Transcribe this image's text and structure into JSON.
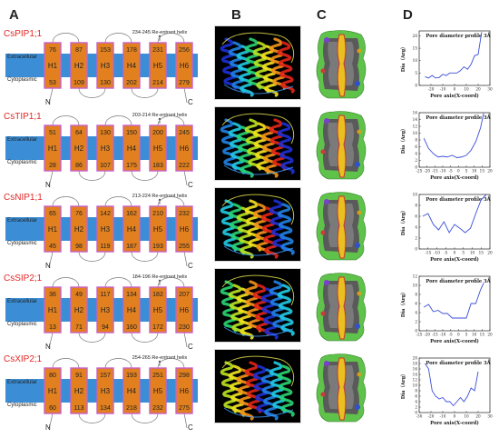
{
  "panel_labels": [
    "A",
    "B",
    "C",
    "D"
  ],
  "membrane": {
    "extracellular_label": "Extracellular",
    "cytoplasmic_label": "Cytoplasmic",
    "n_label": "N",
    "c_label": "C",
    "membrane_color": "#3b8ed6",
    "helix_color": "#e2801f",
    "helix_border": "#c960c9"
  },
  "proteins": [
    {
      "name": "CsPIP1;1",
      "reentrant": "234-245 Re-entrant helix",
      "helices": [
        "H1",
        "H2",
        "H3",
        "H4",
        "H5",
        "H6"
      ],
      "top": [
        "76",
        "87",
        "153",
        "178",
        "231",
        "256"
      ],
      "bottom": [
        "53",
        "109",
        "130",
        "202",
        "214",
        "279"
      ]
    },
    {
      "name": "CsTIP1;1",
      "reentrant": "203-214 Re-entrant helix",
      "helices": [
        "H1",
        "H2",
        "H3",
        "H4",
        "H5",
        "H6"
      ],
      "top": [
        "51",
        "64",
        "130",
        "150",
        "200",
        "245"
      ],
      "bottom": [
        "28",
        "86",
        "107",
        "175",
        "183",
        "222"
      ]
    },
    {
      "name": "CsNIP1;1",
      "reentrant": "213-224 Re-entrant helix",
      "helices": [
        "H1",
        "H2",
        "H3",
        "H4",
        "H5",
        "H6"
      ],
      "top": [
        "65",
        "76",
        "142",
        "162",
        "210",
        "232"
      ],
      "bottom": [
        "45",
        "98",
        "119",
        "187",
        "193",
        "255"
      ]
    },
    {
      "name": "CsSIP2;1",
      "reentrant": "184-196 Re-entrant helix",
      "helices": [
        "H1",
        "H2",
        "H3",
        "H4",
        "H5",
        "H6"
      ],
      "top": [
        "36",
        "49",
        "117",
        "134",
        "182",
        "207"
      ],
      "bottom": [
        "13",
        "71",
        "94",
        "160",
        "172",
        "230"
      ]
    },
    {
      "name": "CsXIP2;1",
      "reentrant": "254-265 Re-entrant helix",
      "helices": [
        "H1",
        "H2",
        "H3",
        "H4",
        "H5",
        "H6"
      ],
      "top": [
        "80",
        "91",
        "157",
        "193",
        "251",
        "298"
      ],
      "bottom": [
        "60",
        "113",
        "134",
        "218",
        "232",
        "275"
      ]
    }
  ],
  "chart_data": [
    {
      "type": "line",
      "title": "Pore diameter profile 3Å",
      "xlabel": "Pore axis(X-coord)",
      "ylabel": "Dia（Arg）",
      "xlim": [
        -30,
        30
      ],
      "ylim": [
        0,
        22
      ],
      "xticks": [
        "-20",
        "-10",
        "0",
        "10",
        "20",
        "30"
      ],
      "yticks": [
        "0",
        "5",
        "10",
        "15",
        "20"
      ],
      "series": [
        {
          "x": [
            -25,
            -22,
            -19,
            -16,
            -13,
            -10,
            -7,
            -4,
            -1,
            2,
            5,
            8,
            11,
            14,
            17,
            20,
            23
          ],
          "y": [
            3.5,
            3.0,
            4.0,
            3.0,
            3.2,
            4.5,
            4.0,
            5.0,
            5.0,
            5.0,
            6.0,
            7.5,
            6.5,
            8.5,
            12,
            12.5,
            21.5
          ]
        }
      ],
      "color": "#3b4fd8"
    },
    {
      "type": "line",
      "title": "Pore diameter profile 3Å",
      "xlabel": "Pore axis(X-coord)",
      "ylabel": "Dia（Arg）",
      "xlim": [
        -25,
        20
      ],
      "ylim": [
        0,
        16
      ],
      "xticks": [
        "-25",
        "-20",
        "-15",
        "-10",
        "-5",
        "0",
        "5",
        "10",
        "15",
        "20"
      ],
      "yticks": [
        "0",
        "2",
        "4",
        "6",
        "8",
        "10",
        "12",
        "14",
        "16"
      ],
      "series": [
        {
          "x": [
            -22,
            -19,
            -16,
            -13,
            -10,
            -7,
            -4,
            -1,
            2,
            5,
            8,
            11,
            14,
            16
          ],
          "y": [
            8.5,
            5.5,
            4.0,
            3.0,
            3.2,
            3.0,
            3.5,
            2.8,
            3.0,
            3.5,
            5.0,
            7.5,
            11.5,
            15.8
          ]
        }
      ],
      "color": "#3b4fd8"
    },
    {
      "type": "line",
      "title": "Pore diameter profile 3Å",
      "xlabel": "Pore axis(X-coord)",
      "ylabel": "Dia（Arg）",
      "xlim": [
        -20,
        20
      ],
      "ylim": [
        0,
        10
      ],
      "xticks": [
        "-15",
        "-10",
        "-5",
        "0",
        "5",
        "10",
        "15",
        "20"
      ],
      "yticks": [
        "0",
        "2",
        "4",
        "6",
        "8",
        "10"
      ],
      "series": [
        {
          "x": [
            -18,
            -15,
            -12,
            -9,
            -6,
            -3,
            0,
            3,
            6,
            9,
            12,
            15,
            18
          ],
          "y": [
            6.0,
            6.5,
            4.5,
            3.5,
            5.0,
            3.0,
            4.5,
            3.8,
            3.0,
            3.8,
            6.5,
            9.0,
            10.0
          ]
        }
      ],
      "color": "#3b4fd8"
    },
    {
      "type": "line",
      "title": "Pore diameter profile 3Å",
      "xlabel": "Pore axis(X-coord)",
      "ylabel": "Dia（Arg）",
      "xlim": [
        -25,
        20
      ],
      "ylim": [
        0,
        12
      ],
      "xticks": [
        "-25",
        "-20",
        "-15",
        "-10",
        "-5",
        "0",
        "5",
        "10",
        "15",
        "20"
      ],
      "yticks": [
        "0",
        "2",
        "4",
        "6",
        "8",
        "10",
        "12"
      ],
      "series": [
        {
          "x": [
            -22,
            -19,
            -16,
            -13,
            -10,
            -7,
            -4,
            -1,
            2,
            5,
            8,
            11,
            14,
            16
          ],
          "y": [
            5.2,
            5.8,
            4.2,
            4.5,
            3.8,
            3.8,
            2.8,
            2.8,
            2.8,
            2.8,
            6.0,
            6.0,
            9.0,
            10.5
          ]
        }
      ],
      "color": "#3b4fd8"
    },
    {
      "type": "line",
      "title": "Pore diameter profile 3Å",
      "xlabel": "Pore axis(X-coord)",
      "ylabel": "Dia（Arg）",
      "xlim": [
        -30,
        30
      ],
      "ylim": [
        0,
        20
      ],
      "xticks": [
        "-30",
        "-20",
        "-10",
        "0",
        "10",
        "20",
        "30"
      ],
      "yticks": [
        "0",
        "2",
        "4",
        "6",
        "8",
        "10",
        "12",
        "14",
        "16",
        "18",
        "20"
      ],
      "series": [
        {
          "x": [
            -25,
            -22,
            -19,
            -16,
            -13,
            -10,
            -7,
            -4,
            -1,
            2,
            5,
            8,
            11,
            14,
            17,
            20
          ],
          "y": [
            18,
            16,
            8,
            6,
            5,
            5.5,
            4,
            4,
            2.5,
            4,
            5.5,
            4,
            6,
            9,
            8,
            15
          ]
        }
      ],
      "color": "#3b4fd8"
    }
  ]
}
